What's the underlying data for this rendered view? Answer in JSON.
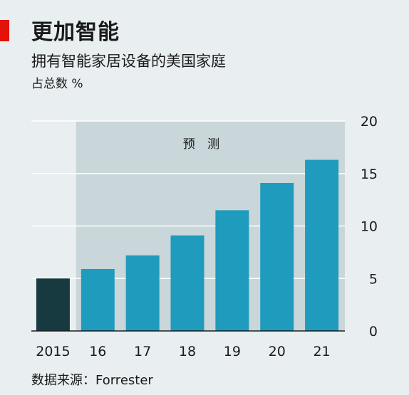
{
  "title": "更加智能",
  "subtitle": "拥有智能家居设备的美国家庭",
  "unit_label": "占总数 %",
  "source": "数据来源：Forrester",
  "forecast_label": "预 测",
  "colors": {
    "accent": "#e3120b",
    "historical_bar": "#163a40",
    "forecast_bar": "#1f9bbd",
    "forecast_band": "#c9d6da",
    "background": "#e9eef0",
    "grid": "#ffffff"
  },
  "chart_data": {
    "type": "bar",
    "categories": [
      "2015",
      "16",
      "17",
      "18",
      "19",
      "20",
      "21"
    ],
    "values": [
      5.0,
      5.9,
      7.2,
      9.1,
      11.5,
      14.1,
      16.3
    ],
    "forecast_from": "16",
    "yticks": [
      0,
      5,
      10,
      15,
      20
    ],
    "ylim": [
      0,
      20
    ],
    "y_axis_position": "right",
    "grid": true
  }
}
